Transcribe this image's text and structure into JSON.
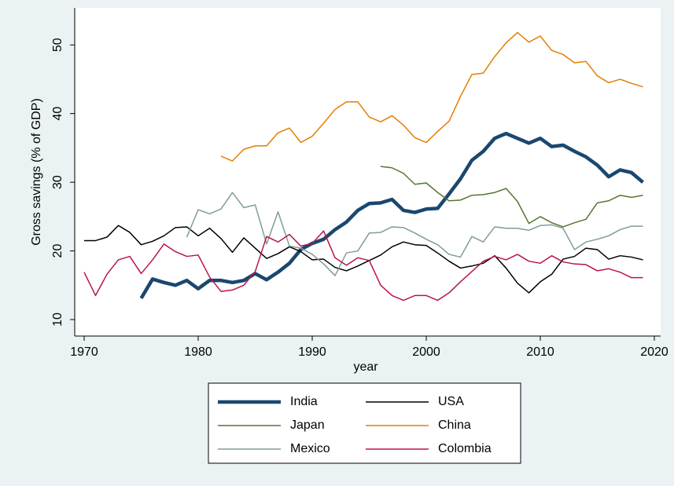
{
  "chart_data": {
    "type": "line",
    "x_label": "year",
    "y_label": "Gross savings (% of GDP)",
    "xlim": [
      1970,
      2020
    ],
    "xticks": [
      1970,
      1980,
      1990,
      2000,
      2010,
      2020
    ],
    "ylim": [
      7.6,
      55.4
    ],
    "yticks": [
      10,
      20,
      30,
      40,
      50
    ],
    "x": [
      1970,
      1971,
      1972,
      1973,
      1974,
      1975,
      1976,
      1977,
      1978,
      1979,
      1980,
      1981,
      1982,
      1983,
      1984,
      1985,
      1986,
      1987,
      1988,
      1989,
      1990,
      1991,
      1992,
      1993,
      1994,
      1995,
      1996,
      1997,
      1998,
      1999,
      2000,
      2001,
      2002,
      2003,
      2004,
      2005,
      2006,
      2007,
      2008,
      2009,
      2010,
      2011,
      2012,
      2013,
      2014,
      2015,
      2016,
      2017,
      2018,
      2019
    ],
    "series": [
      {
        "name": "India",
        "color": "#1a476f",
        "width": 4.5,
        "values": [
          null,
          null,
          null,
          null,
          null,
          13.1,
          15.9,
          15.4,
          15.0,
          15.7,
          14.5,
          15.7,
          15.7,
          15.4,
          15.7,
          16.7,
          15.8,
          16.9,
          18.2,
          20.2,
          21.1,
          21.7,
          23.1,
          24.2,
          25.9,
          26.9,
          27.0,
          27.5,
          25.9,
          25.6,
          26.1,
          26.2,
          28.3,
          30.5,
          33.2,
          34.5,
          36.4,
          37.1,
          36.4,
          35.7,
          36.4,
          35.2,
          35.4,
          34.5,
          33.7,
          32.5,
          30.8,
          31.8,
          31.4,
          30.0
        ]
      },
      {
        "name": "USA",
        "color": "#000000",
        "width": 1.5,
        "values": [
          21.5,
          21.5,
          22.0,
          23.7,
          22.7,
          20.9,
          21.4,
          22.2,
          23.4,
          23.5,
          22.2,
          23.3,
          21.8,
          19.8,
          21.9,
          20.4,
          18.9,
          19.6,
          20.6,
          19.9,
          18.7,
          18.8,
          17.6,
          17.1,
          17.8,
          18.6,
          19.4,
          20.6,
          21.3,
          20.9,
          20.8,
          19.7,
          18.5,
          17.5,
          17.8,
          18.2,
          19.3,
          17.5,
          15.3,
          13.9,
          15.5,
          16.6,
          18.8,
          19.2,
          20.4,
          20.2,
          18.8,
          19.3,
          19.1,
          18.7
        ]
      },
      {
        "name": "Japan",
        "color": "#55752f",
        "width": 1.5,
        "values": [
          null,
          null,
          null,
          null,
          null,
          null,
          null,
          null,
          null,
          null,
          null,
          null,
          null,
          null,
          null,
          null,
          null,
          null,
          null,
          null,
          null,
          null,
          null,
          null,
          null,
          null,
          32.3,
          32.1,
          31.3,
          29.7,
          29.9,
          28.5,
          27.3,
          27.4,
          28.1,
          28.2,
          28.5,
          29.1,
          27.2,
          24.0,
          25.0,
          24.1,
          23.5,
          24.1,
          24.6,
          27.0,
          27.3,
          28.1,
          27.8,
          28.1
        ]
      },
      {
        "name": "China",
        "color": "#e37e00",
        "width": 1.5,
        "values": [
          null,
          null,
          null,
          null,
          null,
          null,
          null,
          null,
          null,
          null,
          null,
          null,
          33.8,
          33.1,
          34.8,
          35.3,
          35.3,
          37.2,
          37.9,
          35.8,
          36.7,
          38.6,
          40.6,
          41.7,
          41.7,
          39.5,
          38.8,
          39.7,
          38.3,
          36.5,
          35.8,
          37.4,
          38.9,
          42.5,
          45.7,
          45.9,
          48.3,
          50.3,
          51.8,
          50.4,
          51.3,
          49.2,
          48.6,
          47.4,
          47.6,
          45.5,
          44.5,
          45.0,
          44.4,
          43.9
        ]
      },
      {
        "name": "Mexico",
        "color": "#7f9d97",
        "width": 1.5,
        "values": [
          null,
          null,
          null,
          null,
          null,
          null,
          null,
          null,
          null,
          22.0,
          26.0,
          25.4,
          26.1,
          28.5,
          26.3,
          26.7,
          21.0,
          25.7,
          20.7,
          20.4,
          19.5,
          18.1,
          16.4,
          19.7,
          20.0,
          22.6,
          22.7,
          23.5,
          23.4,
          22.6,
          21.7,
          20.9,
          19.5,
          19.1,
          22.1,
          21.3,
          23.5,
          23.3,
          23.3,
          23.0,
          23.7,
          23.8,
          23.3,
          20.2,
          21.3,
          21.7,
          22.2,
          23.1,
          23.6,
          23.6
        ]
      },
      {
        "name": "Colombia",
        "color": "#b8154a",
        "width": 1.5,
        "values": [
          16.9,
          13.5,
          16.6,
          18.7,
          19.2,
          16.7,
          18.7,
          21.0,
          19.9,
          19.2,
          19.4,
          16.2,
          14.1,
          14.3,
          15.0,
          17.0,
          22.1,
          21.3,
          22.4,
          20.7,
          21.1,
          22.9,
          19.0,
          17.9,
          19.0,
          18.6,
          15.0,
          13.5,
          12.8,
          13.5,
          13.5,
          12.8,
          13.9,
          15.5,
          17.0,
          18.5,
          19.2,
          18.7,
          19.5,
          18.5,
          18.2,
          19.3,
          18.4,
          18.1,
          18.0,
          17.1,
          17.4,
          16.9,
          16.1,
          16.1
        ]
      }
    ]
  }
}
